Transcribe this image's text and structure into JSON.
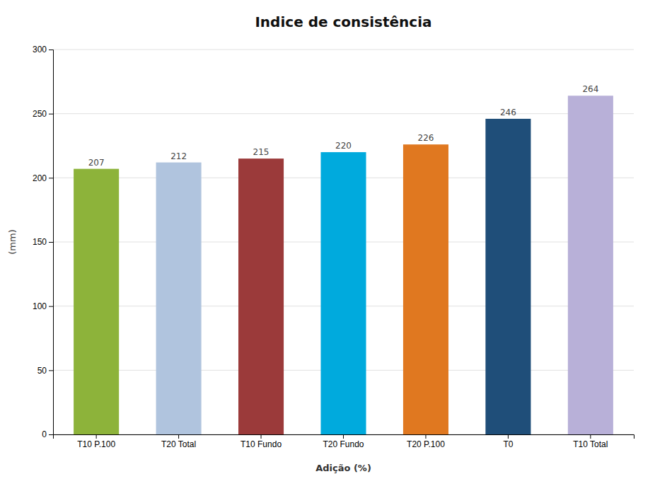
{
  "chart_data": {
    "type": "bar",
    "title": "Indice de consistência",
    "xlabel": "Adição (%)",
    "ylabel": "(mm)",
    "categories": [
      "T10 P.100",
      "T20 Total",
      "T10 Fundo",
      "T20 Fundo",
      "T20 P.100",
      "T0",
      "T10 Total"
    ],
    "values": [
      207,
      212,
      215,
      220,
      226,
      246,
      264
    ],
    "colors": [
      "#8DB33A",
      "#B0C4DE",
      "#9B3A3A",
      "#00AADD",
      "#E07820",
      "#1F4E79",
      "#B8B0D8"
    ],
    "ylim": [
      0,
      300
    ],
    "yticks": [
      0,
      50,
      100,
      150,
      200,
      250,
      300
    ],
    "grid": true,
    "data_labels": true
  }
}
